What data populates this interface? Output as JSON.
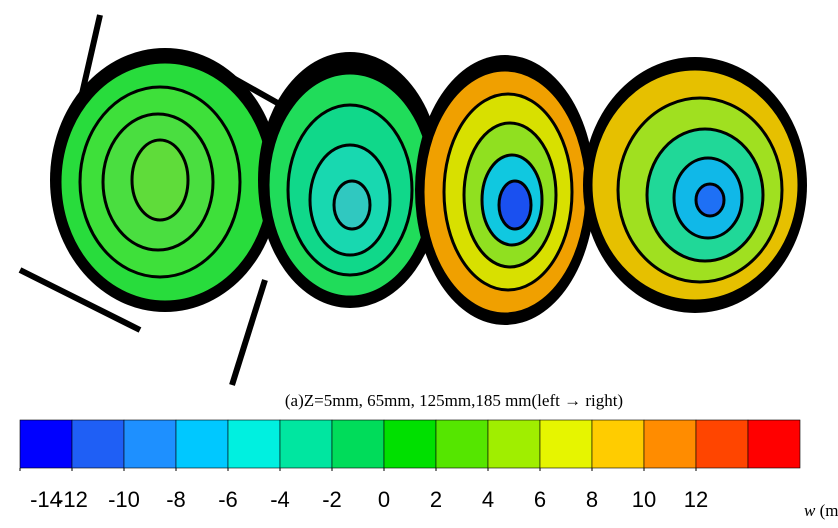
{
  "chart_data": {
    "type": "colorbar",
    "caption": "(a)Z=5mm, 65mm, 125mm,185 mm(left → right)",
    "label_variable": "w",
    "label_unit": "(m/s)",
    "xlim": [
      -14,
      16
    ],
    "xticks": [
      -14,
      -12,
      -10,
      -8,
      -6,
      -4,
      -2,
      0,
      2,
      4,
      6,
      8,
      10,
      12
    ],
    "colors": [
      "#0000ff",
      "#1f5ff5",
      "#1e90ff",
      "#00c8ff",
      "#00f0e0",
      "#00e6a0",
      "#00dc5a",
      "#00e000",
      "#55e600",
      "#a0ee00",
      "#e6f500",
      "#ffcc00",
      "#ff8c00",
      "#ff4500",
      "#ff0000"
    ]
  }
}
